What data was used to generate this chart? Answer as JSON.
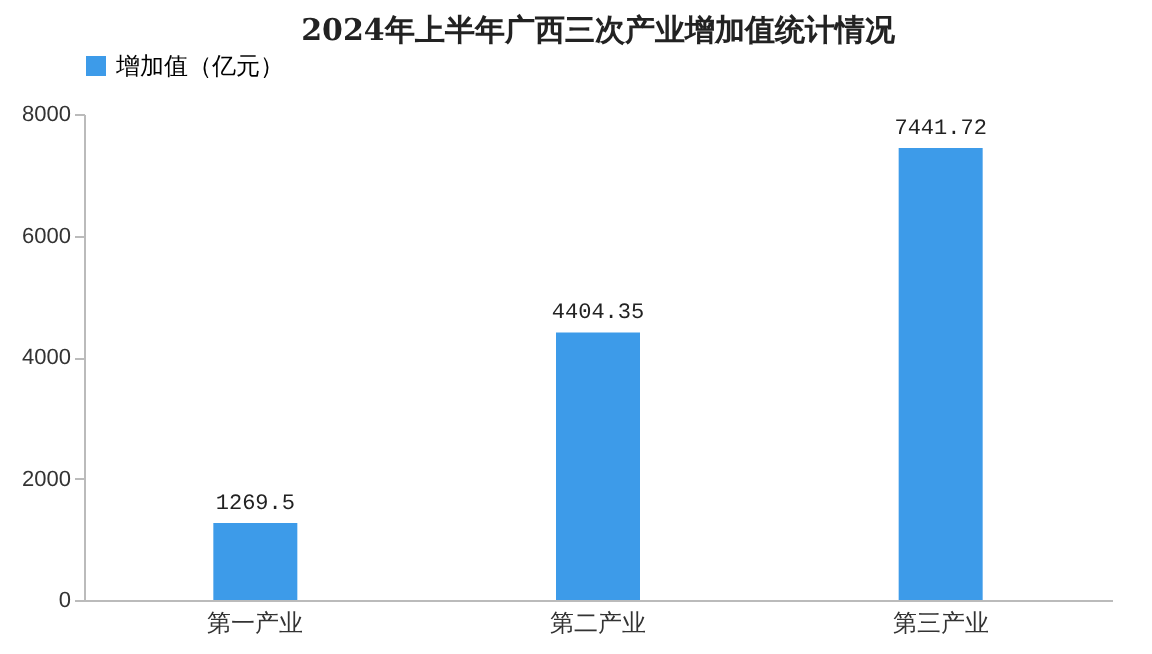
{
  "chart_data": {
    "type": "bar",
    "title": "2024年上半年广西三次产业增加值统计情况",
    "categories": [
      "第一产业",
      "第二产业",
      "第三产业"
    ],
    "series": [
      {
        "name": "增加值（亿元）",
        "color": "#3d9be9",
        "values": [
          1269.5,
          4404.35,
          7441.72
        ]
      }
    ],
    "ylim": [
      0,
      8000
    ],
    "yticks": [
      0,
      2000,
      4000,
      6000,
      8000
    ],
    "grid": false,
    "legend": "top",
    "data_labels": true
  }
}
